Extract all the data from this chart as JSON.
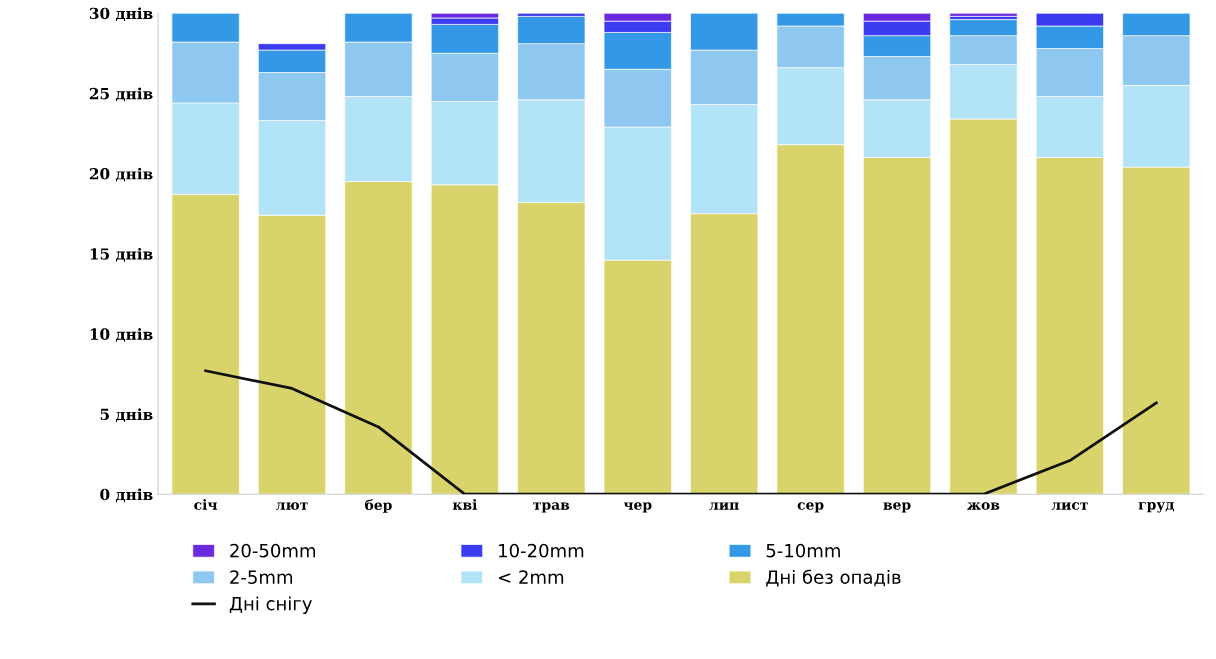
{
  "chart_data": {
    "type": "bar",
    "stacked": true,
    "categories": [
      "січ",
      "лют",
      "бер",
      "кві",
      "трав",
      "чер",
      "лип",
      "сер",
      "вер",
      "жов",
      "лист",
      "груд"
    ],
    "series": [
      {
        "name": "Дні без опадів",
        "color": "#d8d36a",
        "values": [
          18.7,
          17.4,
          19.5,
          19.3,
          18.2,
          14.6,
          17.5,
          21.8,
          21.0,
          23.4,
          21.0,
          20.4
        ]
      },
      {
        "name": "< 2mm",
        "color": "#b3e3f6",
        "values": [
          5.7,
          5.9,
          5.3,
          5.2,
          6.4,
          8.3,
          6.8,
          4.8,
          3.6,
          3.4,
          3.8,
          5.1
        ]
      },
      {
        "name": "2-5mm",
        "color": "#8ec8f0",
        "values": [
          3.8,
          3.0,
          3.4,
          3.0,
          3.5,
          3.6,
          3.4,
          2.6,
          2.7,
          1.8,
          3.0,
          3.1
        ]
      },
      {
        "name": "5-10mm",
        "color": "#3399e6",
        "values": [
          1.8,
          1.4,
          1.8,
          1.8,
          1.7,
          2.3,
          2.3,
          0.8,
          1.3,
          1.0,
          1.4,
          1.4
        ]
      },
      {
        "name": "10-20mm",
        "color": "#3b3bf0",
        "values": [
          null,
          0.4,
          null,
          0.4,
          0.2,
          0.7,
          null,
          null,
          0.9,
          0.2,
          0.8,
          null
        ]
      },
      {
        "name": "20-50mm",
        "color": "#6a2be0",
        "values": [
          null,
          null,
          null,
          0.3,
          null,
          0.5,
          null,
          null,
          0.5,
          0.2,
          null,
          null
        ]
      },
      {
        "name": "Дні снігу",
        "type": "line",
        "color": "#111111",
        "values": [
          7.7,
          6.6,
          4.2,
          0,
          0,
          0,
          0,
          0,
          0,
          0,
          2.1,
          5.7
        ]
      }
    ],
    "ylim": [
      0,
      30
    ],
    "yticks": [
      {
        "value": 0,
        "label": "0 днів"
      },
      {
        "value": 5,
        "label": "5 днів"
      },
      {
        "value": 10,
        "label": "10 днів"
      },
      {
        "value": 15,
        "label": "15 днів"
      },
      {
        "value": 20,
        "label": "20 днів"
      },
      {
        "value": 25,
        "label": "25 днів"
      },
      {
        "value": 30,
        "label": "30 днів"
      }
    ],
    "legend": "bottom",
    "grid": false
  }
}
